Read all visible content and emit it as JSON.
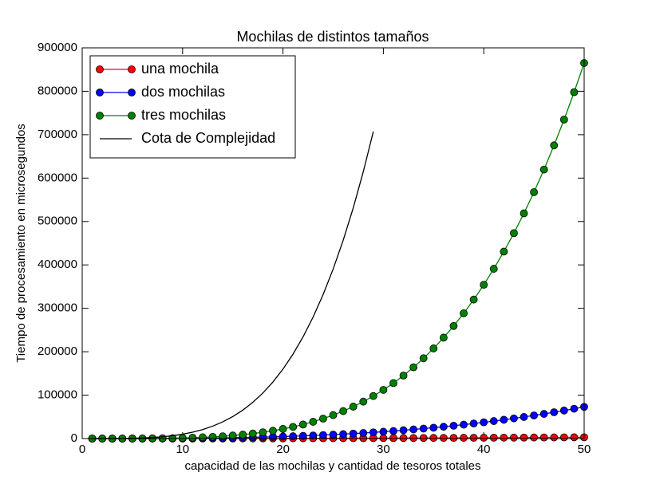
{
  "chart_data": {
    "type": "line",
    "title": "Mochilas de distintos tamaños",
    "xlabel": "capacidad de las mochilas y cantidad de tesoros totales",
    "ylabel": "Tiempo de procesamiento en microsegundos",
    "x": [
      1,
      2,
      3,
      4,
      5,
      6,
      7,
      8,
      9,
      10,
      11,
      12,
      13,
      14,
      15,
      16,
      17,
      18,
      19,
      20,
      21,
      22,
      23,
      24,
      25,
      26,
      27,
      28,
      29,
      30,
      31,
      32,
      33,
      34,
      35,
      36,
      37,
      38,
      39,
      40,
      41,
      42,
      43,
      44,
      45,
      46,
      47,
      48,
      49,
      50
    ],
    "series": [
      {
        "name": "una mochila",
        "color": "#ff0000",
        "markers": true,
        "values": [
          1,
          5,
          11,
          19,
          30,
          43,
          59,
          77,
          97,
          120,
          145,
          173,
          203,
          235,
          270,
          307,
          347,
          389,
          433,
          480,
          529,
          581,
          635,
          691,
          750,
          811,
          875,
          941,
          1009,
          1080,
          1153,
          1229,
          1307,
          1387,
          1470,
          1555,
          1643,
          1733,
          1825,
          1920,
          2017,
          2117,
          2219,
          2323,
          2430,
          2539,
          2651,
          2765,
          2881,
          3000
        ]
      },
      {
        "name": "dos mochilas",
        "color": "#0000ff",
        "markers": true,
        "values": [
          1,
          5,
          16,
          37,
          73,
          126,
          200,
          299,
          426,
          584,
          777,
          1009,
          1283,
          1602,
          1971,
          2392,
          2869,
          3406,
          4006,
          4672,
          5408,
          6218,
          7106,
          8073,
          9125,
          10264,
          11495,
          12820,
          14243,
          15768,
          17398,
          19137,
          20987,
          22954,
          25039,
          27247,
          29581,
          32045,
          34642,
          37376,
          40250,
          43267,
          46432,
          49747,
          53217,
          56844,
          60633,
          64586,
          68707,
          73000
        ]
      },
      {
        "name": "tres mochilas",
        "color": "#008000",
        "markers": true,
        "values": [
          0,
          2,
          11,
          35,
          87,
          179,
          332,
          567,
          908,
          1384,
          2026,
          2870,
          3953,
          5317,
          7006,
          9070,
          11559,
          14529,
          18036,
          22144,
          26916,
          32421,
          38730,
          45918,
          54063,
          63245,
          73551,
          85068,
          97888,
          112104,
          127815,
          145123,
          164131,
          184949,
          207687,
          232459,
          259384,
          288583,
          320180,
          354304,
          391085,
          430659,
          473162,
          518736,
          567527,
          619680,
          675348,
          734685,
          797848,
          865000
        ]
      },
      {
        "name": "Cota de Complejidad",
        "color": "#000000",
        "markers": false,
        "values": [
          1,
          16,
          81,
          256,
          625,
          1296,
          2401,
          4096,
          6561,
          10000,
          14641,
          20736,
          28561,
          38416,
          50625,
          65536,
          83521,
          104976,
          130321,
          160000,
          194481,
          234256,
          279841,
          331776,
          390625,
          456976,
          531441,
          614656,
          707281,
          null,
          null,
          null,
          null,
          null,
          null,
          null,
          null,
          null,
          null,
          null,
          null,
          null,
          null,
          null,
          null,
          null,
          null,
          null,
          null,
          null
        ]
      }
    ],
    "xlim": [
      0,
      50
    ],
    "xticks": [
      0,
      10,
      20,
      30,
      40,
      50
    ],
    "ylim": [
      0,
      900000
    ],
    "yticks": [
      0,
      100000,
      200000,
      300000,
      400000,
      500000,
      600000,
      700000,
      800000,
      900000
    ],
    "grid": false,
    "legend": "upper left"
  }
}
